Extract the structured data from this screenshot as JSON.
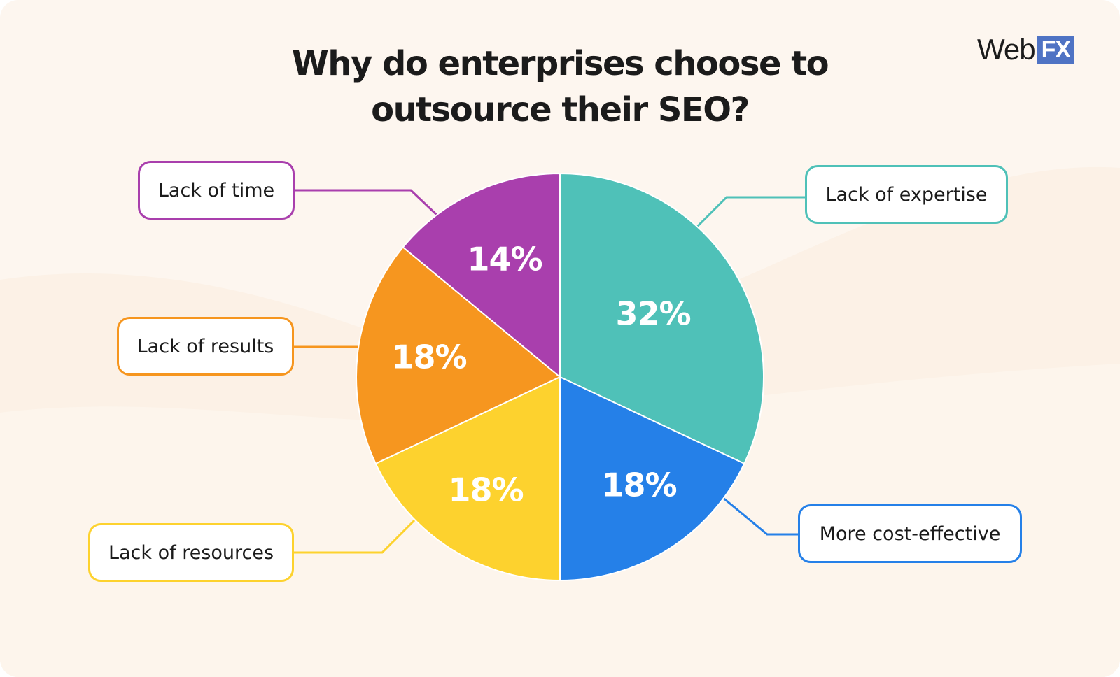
{
  "title_lines": [
    "Why do enterprises choose to",
    "outsource their SEO?"
  ],
  "logo": {
    "web": "Web",
    "fx": "FX",
    "fx_color": "#4f73c4"
  },
  "chart_data": {
    "type": "pie",
    "title": "Why do enterprises choose to outsource their SEO?",
    "unit": "%",
    "slices": [
      {
        "label": "Lack of expertise",
        "value": 32,
        "display": "32%",
        "color": "#4fc1b8"
      },
      {
        "label": "More cost-effective",
        "value": 18,
        "display": "18%",
        "color": "#2580e8"
      },
      {
        "label": "Lack of resources",
        "value": 18,
        "display": "18%",
        "color": "#fdd22e"
      },
      {
        "label": "Lack of results",
        "value": 18,
        "display": "18%",
        "color": "#f6961f"
      },
      {
        "label": "Lack of time",
        "value": 14,
        "display": "14%",
        "color": "#a93fad"
      }
    ],
    "start": "top, clockwise",
    "legend": "callout labels"
  }
}
